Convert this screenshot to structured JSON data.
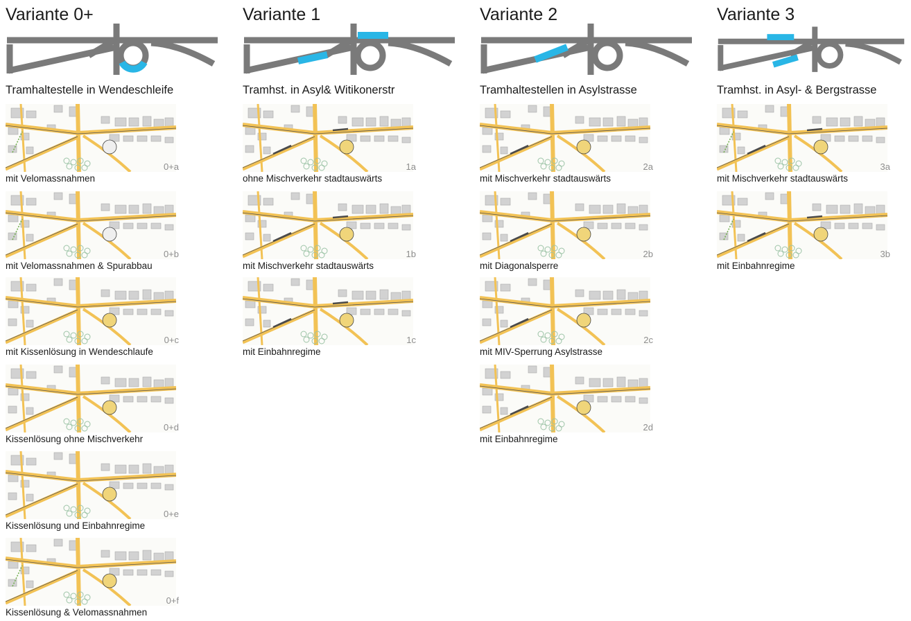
{
  "columns": [
    {
      "title": "Variante 0+",
      "subtitle": "Tramhaltestelle in Wendeschleife",
      "highlight": "loop",
      "accent": "#29b6e6",
      "items": [
        {
          "code": "0+a",
          "caption": "mit Velomassnahmen"
        },
        {
          "code": "0+b",
          "caption": "mit Velomassnahmen & Spurabbau"
        },
        {
          "code": "0+c",
          "caption": "mit Kissenlösung in Wendeschlaufe"
        },
        {
          "code": "0+d",
          "caption": "Kissenlösung ohne Mischverkehr"
        },
        {
          "code": "0+e",
          "caption": "Kissenlösung und Einbahnregime"
        },
        {
          "code": "0+f",
          "caption": "Kissenlösung & Velomassnahmen"
        }
      ]
    },
    {
      "title": "Variante 1",
      "subtitle": "Tramhst. in Asyl& Witikonerstr",
      "highlight": "diag-left-and-top",
      "accent": "#29b6e6",
      "items": [
        {
          "code": "1a",
          "caption": "ohne Mischverkehr stadtauswärts"
        },
        {
          "code": "1b",
          "caption": "mit Mischverkehr stadtauswärts"
        },
        {
          "code": "1c",
          "caption": "mit Einbahnregime"
        }
      ]
    },
    {
      "title": "Variante 2",
      "subtitle": "Tramhaltestellen in Asylstrasse",
      "highlight": "diag-mid",
      "accent": "#29b6e6",
      "items": [
        {
          "code": "2a",
          "caption": "mit Mischverkehr stadtauswärts"
        },
        {
          "code": "2b",
          "caption": "mit Diagonalsperre"
        },
        {
          "code": "2c",
          "caption": "mit MIV-Sperrung Asylstrasse"
        },
        {
          "code": "2d",
          "caption": "mit Einbahnregime"
        }
      ]
    },
    {
      "title": "Variante 3",
      "subtitle": "Tramhst. in Asyl- & Bergstrasse",
      "highlight": "diag-right-and-top",
      "accent": "#29b6e6",
      "items": [
        {
          "code": "3a",
          "caption": "mit Mischverkehr stadtauswärts"
        },
        {
          "code": "3b",
          "caption": "mit Einbahnregime"
        }
      ]
    }
  ]
}
